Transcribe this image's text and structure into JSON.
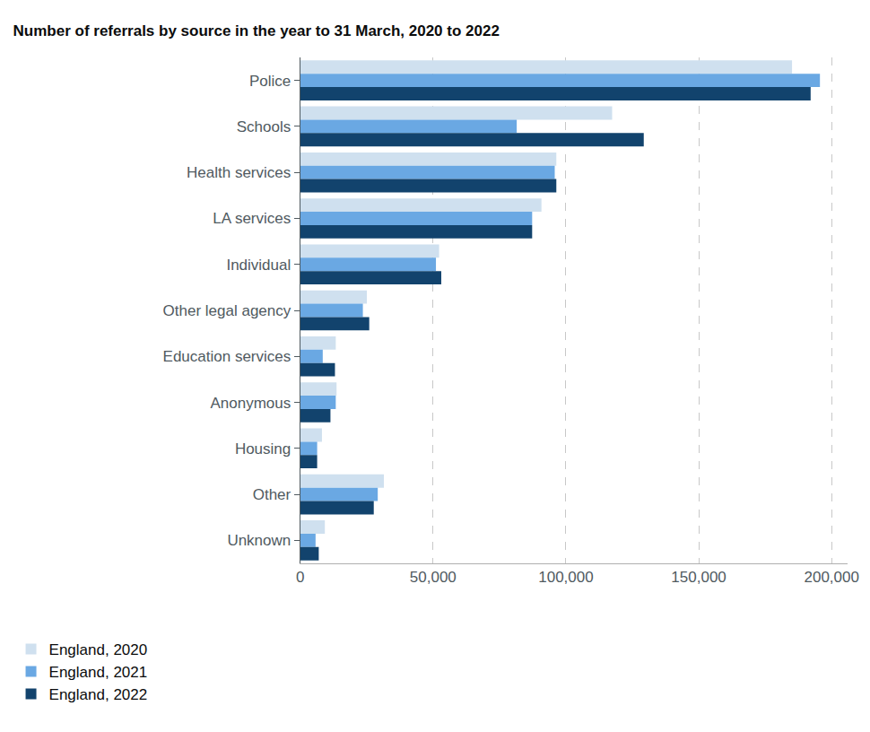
{
  "chart_data": {
    "type": "bar",
    "orientation": "horizontal",
    "title": "Number of referrals by source in the year to 31 March, 2020 to 2022",
    "categories": [
      "Police",
      "Schools",
      "Health services",
      "LA services",
      "Individual",
      "Other legal agency",
      "Education services",
      "Anonymous",
      "Housing",
      "Other",
      "Unknown"
    ],
    "series": [
      {
        "name": "England, 2020",
        "color": "#cfe0ef",
        "values": [
          185100,
          117400,
          96400,
          90800,
          52300,
          25100,
          13400,
          13700,
          8200,
          31500,
          9300
        ]
      },
      {
        "name": "England, 2021",
        "color": "#6aa8e3",
        "values": [
          195600,
          81500,
          95800,
          87300,
          51100,
          23600,
          8500,
          13400,
          6400,
          29200,
          5800
        ]
      },
      {
        "name": "England, 2022",
        "color": "#12436d",
        "values": [
          192100,
          129300,
          96400,
          87300,
          53100,
          26000,
          13100,
          11400,
          6400,
          27700,
          7000
        ]
      }
    ],
    "xlim": [
      0,
      206000
    ],
    "xticks": [
      0,
      {
        "value": 50000,
        "label": "50,000"
      },
      {
        "value": 100000,
        "label": "100,000"
      },
      {
        "value": 150000,
        "label": "150,000"
      },
      {
        "value": 200000,
        "label": "200,000"
      }
    ],
    "grid": true,
    "legend": "bottom left"
  }
}
